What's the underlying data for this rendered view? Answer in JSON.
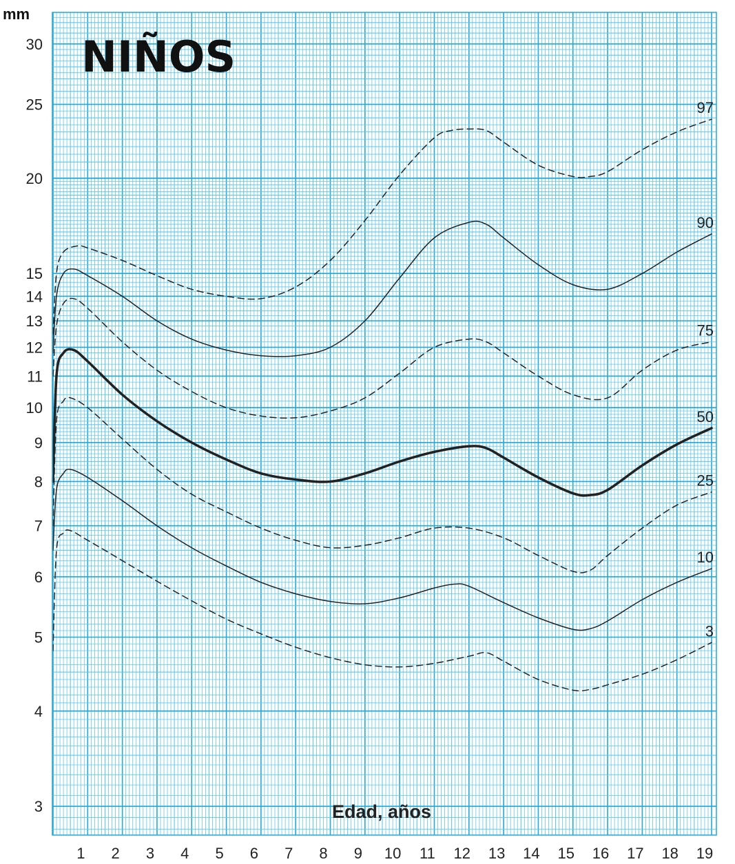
{
  "chart_data": {
    "type": "line",
    "title": "NIÑOS",
    "ylabel": "mm",
    "xlabel": "Edad, años",
    "xlim": [
      0,
      19
    ],
    "ylim": [
      2.75,
      33
    ],
    "y_scale": "log",
    "grid": true,
    "x_ticks": [
      1,
      2,
      3,
      4,
      5,
      6,
      7,
      8,
      9,
      10,
      11,
      12,
      13,
      14,
      15,
      16,
      17,
      18,
      19
    ],
    "y_ticks": [
      3,
      4,
      5,
      6,
      7,
      8,
      9,
      10,
      11,
      12,
      13,
      14,
      15,
      20,
      25,
      30
    ],
    "series": [
      {
        "name": "97",
        "dashed": true,
        "points": [
          [
            0,
            12.5
          ],
          [
            0.1,
            15.0
          ],
          [
            0.3,
            16.0
          ],
          [
            0.7,
            16.3
          ],
          [
            1,
            16.2
          ],
          [
            2,
            15.6
          ],
          [
            3,
            14.9
          ],
          [
            4,
            14.3
          ],
          [
            5,
            14.0
          ],
          [
            6,
            13.9
          ],
          [
            7,
            14.4
          ],
          [
            8,
            15.6
          ],
          [
            9,
            17.6
          ],
          [
            10,
            20.2
          ],
          [
            11,
            22.6
          ],
          [
            11.5,
            23.1
          ],
          [
            12,
            23.2
          ],
          [
            12.5,
            23.1
          ],
          [
            13,
            22.3
          ],
          [
            14,
            20.8
          ],
          [
            15,
            20.1
          ],
          [
            15.5,
            20.1
          ],
          [
            16,
            20.4
          ],
          [
            17,
            21.8
          ],
          [
            18,
            23.0
          ],
          [
            19,
            23.9
          ]
        ]
      },
      {
        "name": "90",
        "dashed": false,
        "points": [
          [
            0,
            11.8
          ],
          [
            0.1,
            14.0
          ],
          [
            0.3,
            15.0
          ],
          [
            0.6,
            15.2
          ],
          [
            1,
            14.9
          ],
          [
            2,
            14.0
          ],
          [
            3,
            13.0
          ],
          [
            4,
            12.3
          ],
          [
            5,
            11.9
          ],
          [
            6,
            11.7
          ],
          [
            7,
            11.7
          ],
          [
            8,
            12.0
          ],
          [
            9,
            13.0
          ],
          [
            10,
            14.8
          ],
          [
            11,
            16.7
          ],
          [
            12,
            17.5
          ],
          [
            12.5,
            17.4
          ],
          [
            13,
            16.7
          ],
          [
            14,
            15.4
          ],
          [
            15,
            14.5
          ],
          [
            16,
            14.3
          ],
          [
            17,
            15.0
          ],
          [
            18,
            16.0
          ],
          [
            19,
            16.9
          ]
        ]
      },
      {
        "name": "75",
        "dashed": true,
        "points": [
          [
            0,
            11.0
          ],
          [
            0.1,
            12.8
          ],
          [
            0.3,
            13.7
          ],
          [
            0.6,
            13.9
          ],
          [
            1,
            13.5
          ],
          [
            2,
            12.2
          ],
          [
            3,
            11.2
          ],
          [
            4,
            10.5
          ],
          [
            5,
            10.0
          ],
          [
            6,
            9.75
          ],
          [
            7,
            9.7
          ],
          [
            8,
            9.9
          ],
          [
            9,
            10.3
          ],
          [
            10,
            11.1
          ],
          [
            11,
            12.0
          ],
          [
            12,
            12.3
          ],
          [
            12.5,
            12.2
          ],
          [
            13,
            11.8
          ],
          [
            14,
            11.0
          ],
          [
            15,
            10.4
          ],
          [
            16,
            10.3
          ],
          [
            17,
            11.2
          ],
          [
            18,
            11.9
          ],
          [
            19,
            12.2
          ]
        ]
      },
      {
        "name": "50",
        "dashed": false,
        "bold": true,
        "points": [
          [
            0,
            8.0
          ],
          [
            0.1,
            11.0
          ],
          [
            0.3,
            11.8
          ],
          [
            0.6,
            11.9
          ],
          [
            1,
            11.5
          ],
          [
            2,
            10.4
          ],
          [
            3,
            9.6
          ],
          [
            4,
            9.0
          ],
          [
            5,
            8.55
          ],
          [
            6,
            8.2
          ],
          [
            7,
            8.05
          ],
          [
            8,
            8.0
          ],
          [
            9,
            8.2
          ],
          [
            10,
            8.5
          ],
          [
            11,
            8.75
          ],
          [
            12,
            8.9
          ],
          [
            12.5,
            8.85
          ],
          [
            13,
            8.6
          ],
          [
            14,
            8.1
          ],
          [
            15,
            7.72
          ],
          [
            15.5,
            7.68
          ],
          [
            16,
            7.8
          ],
          [
            17,
            8.4
          ],
          [
            18,
            8.95
          ],
          [
            19,
            9.4
          ]
        ]
      },
      {
        "name": "25",
        "dashed": true,
        "points": [
          [
            0,
            7.0
          ],
          [
            0.1,
            9.6
          ],
          [
            0.3,
            10.2
          ],
          [
            0.5,
            10.3
          ],
          [
            1,
            10.0
          ],
          [
            2,
            9.1
          ],
          [
            3,
            8.3
          ],
          [
            4,
            7.7
          ],
          [
            5,
            7.3
          ],
          [
            6,
            6.95
          ],
          [
            7,
            6.7
          ],
          [
            8,
            6.55
          ],
          [
            9,
            6.6
          ],
          [
            10,
            6.75
          ],
          [
            11,
            6.95
          ],
          [
            12,
            6.95
          ],
          [
            13,
            6.75
          ],
          [
            14,
            6.4
          ],
          [
            15,
            6.1
          ],
          [
            15.5,
            6.12
          ],
          [
            16,
            6.4
          ],
          [
            17,
            6.95
          ],
          [
            18,
            7.45
          ],
          [
            19,
            7.75
          ]
        ]
      },
      {
        "name": "10",
        "dashed": false,
        "points": [
          [
            0,
            6.5
          ],
          [
            0.1,
            7.8
          ],
          [
            0.3,
            8.2
          ],
          [
            0.5,
            8.3
          ],
          [
            1,
            8.1
          ],
          [
            2,
            7.55
          ],
          [
            3,
            7.0
          ],
          [
            4,
            6.55
          ],
          [
            5,
            6.2
          ],
          [
            6,
            5.9
          ],
          [
            7,
            5.7
          ],
          [
            8,
            5.57
          ],
          [
            9,
            5.53
          ],
          [
            10,
            5.63
          ],
          [
            11,
            5.8
          ],
          [
            11.6,
            5.87
          ],
          [
            12,
            5.83
          ],
          [
            13,
            5.55
          ],
          [
            14,
            5.3
          ],
          [
            15,
            5.12
          ],
          [
            15.5,
            5.13
          ],
          [
            16,
            5.25
          ],
          [
            17,
            5.6
          ],
          [
            18,
            5.9
          ],
          [
            19,
            6.15
          ]
        ]
      },
      {
        "name": "3",
        "dashed": true,
        "points": [
          [
            0,
            4.8
          ],
          [
            0.1,
            6.5
          ],
          [
            0.3,
            6.85
          ],
          [
            0.5,
            6.9
          ],
          [
            1,
            6.7
          ],
          [
            2,
            6.3
          ],
          [
            3,
            5.92
          ],
          [
            4,
            5.58
          ],
          [
            5,
            5.28
          ],
          [
            6,
            5.05
          ],
          [
            7,
            4.85
          ],
          [
            8,
            4.7
          ],
          [
            9,
            4.6
          ],
          [
            10,
            4.57
          ],
          [
            11,
            4.62
          ],
          [
            12,
            4.72
          ],
          [
            12.5,
            4.77
          ],
          [
            13,
            4.65
          ],
          [
            14,
            4.4
          ],
          [
            15,
            4.26
          ],
          [
            15.5,
            4.27
          ],
          [
            16,
            4.33
          ],
          [
            17,
            4.47
          ],
          [
            18,
            4.67
          ],
          [
            19,
            4.92
          ]
        ]
      }
    ],
    "colors": {
      "grid_minor": "#5cc7ee",
      "grid_major": "#1ea9e1",
      "curve": "#222222"
    }
  }
}
